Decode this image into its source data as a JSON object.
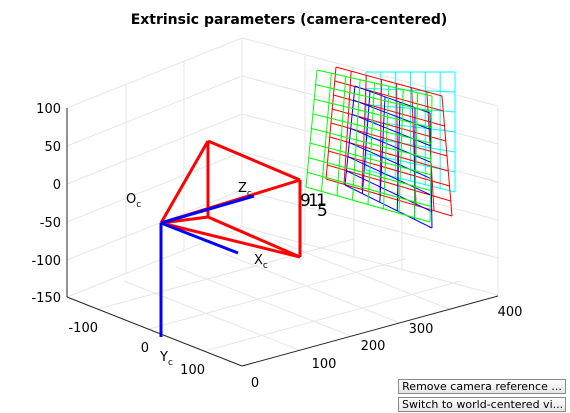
{
  "title": "Extrinsic parameters (camera-centered)",
  "axes": {
    "z_ticks": [
      "100",
      "50",
      "0",
      "-50",
      "-100",
      "-150"
    ],
    "y_ticks": [
      "-100",
      "0",
      "100"
    ],
    "x_ticks": [
      "0",
      "100",
      "200",
      "300",
      "400"
    ],
    "y_label": {
      "main": "Y",
      "sub": "c"
    }
  },
  "camera_labels": {
    "origin": {
      "main": "O",
      "sub": "c"
    },
    "z": {
      "main": "Z",
      "sub": "c"
    },
    "x": {
      "main": "X",
      "sub": "c"
    }
  },
  "plane_labels": [
    "9",
    "1",
    "1",
    "5"
  ],
  "colors": {
    "camera": "#ff0000",
    "axis_blue": "#0000ff",
    "plane_red": "#ff0000",
    "plane_green": "#00ff00",
    "plane_blue": "#0000ff",
    "plane_cyan": "#00ffff",
    "grid": "#e6e6e6"
  },
  "buttons": {
    "remove_camera": "Remove camera reference ...",
    "switch_world": "Switch to world-centered vi..."
  }
}
